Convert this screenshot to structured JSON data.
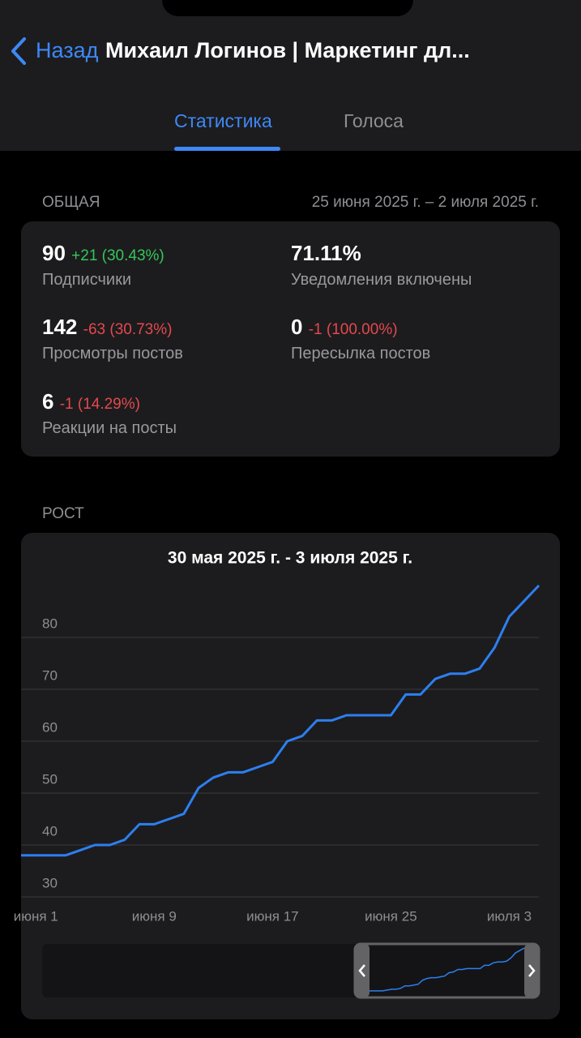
{
  "header": {
    "back": "Назад",
    "title": "Михаил Логинов | Маркетинг дл..."
  },
  "tabs": [
    "Статистика",
    "Голоса"
  ],
  "overview": {
    "title": "ОБЩАЯ",
    "period": "25 июня 2025 г. – 2 июля 2025 г.",
    "items": [
      {
        "value": 90,
        "change": "+21 (30.43%)",
        "label": "Подписчики"
      },
      {
        "value": "71.11%",
        "label": "Уведомления включены"
      },
      {
        "value": 142,
        "change": "-63 (30.73%)",
        "label": "Просмотры постов"
      },
      {
        "value": 0,
        "change": "-1 (100.00%)",
        "label": "Пересылка постов"
      },
      {
        "value": 6,
        "change": "-1 (14.29%)",
        "label": "Реакции на посты"
      }
    ]
  },
  "growth": {
    "title": "РОСТ"
  },
  "chart_data": {
    "type": "line",
    "title": "30 мая 2025 г. - 3 июля 2025 г.",
    "categories": [
      null,
      "июня 1",
      null,
      null,
      null,
      null,
      null,
      null,
      null,
      "июня 9",
      null,
      null,
      null,
      null,
      null,
      null,
      null,
      "июня 17",
      null,
      null,
      null,
      null,
      null,
      null,
      null,
      "июня 25",
      null,
      null,
      null,
      null,
      null,
      null,
      null,
      "июля 3",
      null,
      null
    ],
    "values": [
      38,
      38,
      38,
      38,
      39,
      40,
      40,
      41,
      44,
      44,
      45,
      46,
      51,
      53,
      54,
      54,
      55,
      56,
      60,
      61,
      64,
      64,
      65,
      65,
      65,
      65,
      69,
      69,
      72,
      73,
      73,
      74,
      78,
      84,
      87,
      90
    ],
    "color": "#2d7ff0",
    "ylim": [
      30,
      91
    ],
    "yticks": [
      30,
      40,
      50,
      60,
      70,
      80
    ],
    "grid": true
  }
}
